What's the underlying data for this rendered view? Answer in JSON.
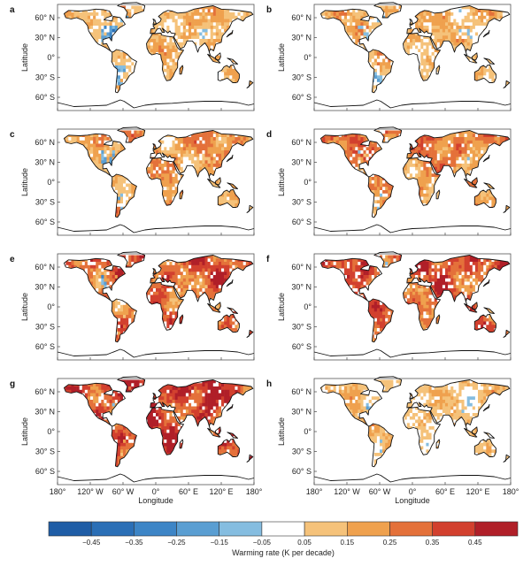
{
  "figure": {
    "panels": [
      {
        "letter": "a",
        "intensity": 0.3,
        "cool_amount": 0.55
      },
      {
        "letter": "b",
        "intensity": 0.28,
        "cool_amount": 0.45
      },
      {
        "letter": "c",
        "intensity": 0.45,
        "cool_amount": 0.35
      },
      {
        "letter": "d",
        "intensity": 0.55,
        "cool_amount": 0.2
      },
      {
        "letter": "e",
        "intensity": 0.7,
        "cool_amount": 0.15
      },
      {
        "letter": "f",
        "intensity": 0.75,
        "cool_amount": 0.12
      },
      {
        "letter": "g",
        "intensity": 0.85,
        "cool_amount": 0.1
      },
      {
        "letter": "h",
        "intensity": 0.22,
        "cool_amount": 0.03
      }
    ],
    "y_axis": {
      "title": "Latitude",
      "ticks": [
        {
          "value": 60,
          "label": "60° N"
        },
        {
          "value": 30,
          "label": "30° N"
        },
        {
          "value": 0,
          "label": "0°"
        },
        {
          "value": -30,
          "label": "30° S"
        },
        {
          "value": -60,
          "label": "60° S"
        }
      ]
    },
    "x_axis": {
      "title": "Longitude",
      "ticks": [
        {
          "value": -180,
          "label": "180°"
        },
        {
          "value": -120,
          "label": "120° W"
        },
        {
          "value": -60,
          "label": "60° W"
        },
        {
          "value": 0,
          "label": "0°"
        },
        {
          "value": 60,
          "label": "60° E"
        },
        {
          "value": 120,
          "label": "120° E"
        },
        {
          "value": 180,
          "label": "180°"
        }
      ]
    },
    "colorbar": {
      "title": "Warming rate (K per decade)",
      "range": [
        -0.55,
        0.55
      ],
      "bins": [
        {
          "from": -0.55,
          "to": -0.45,
          "color": "#1f5da6"
        },
        {
          "from": -0.45,
          "to": -0.35,
          "color": "#2b6fb6"
        },
        {
          "from": -0.35,
          "to": -0.25,
          "color": "#3d85c6"
        },
        {
          "from": -0.25,
          "to": -0.15,
          "color": "#5a9ed2"
        },
        {
          "from": -0.15,
          "to": -0.05,
          "color": "#85bde0"
        },
        {
          "from": -0.05,
          "to": 0.05,
          "color": "#ffffff"
        },
        {
          "from": 0.05,
          "to": 0.15,
          "color": "#f5c27a"
        },
        {
          "from": 0.15,
          "to": 0.25,
          "color": "#efa14e"
        },
        {
          "from": 0.25,
          "to": 0.35,
          "color": "#e4713a"
        },
        {
          "from": 0.35,
          "to": 0.45,
          "color": "#d2402e"
        },
        {
          "from": 0.45,
          "to": 0.55,
          "color": "#b01f28"
        }
      ],
      "tick_labels": [
        {
          "value": -0.45,
          "label": "−0.45"
        },
        {
          "value": -0.35,
          "label": "−0.35"
        },
        {
          "value": -0.25,
          "label": "−0.25"
        },
        {
          "value": -0.15,
          "label": "−0.15"
        },
        {
          "value": -0.05,
          "label": "−0.05"
        },
        {
          "value": 0.05,
          "label": "0.05"
        },
        {
          "value": 0.15,
          "label": "0.15"
        },
        {
          "value": 0.25,
          "label": "0.25"
        },
        {
          "value": 0.35,
          "label": "0.35"
        },
        {
          "value": 0.45,
          "label": "0.45"
        }
      ]
    }
  }
}
